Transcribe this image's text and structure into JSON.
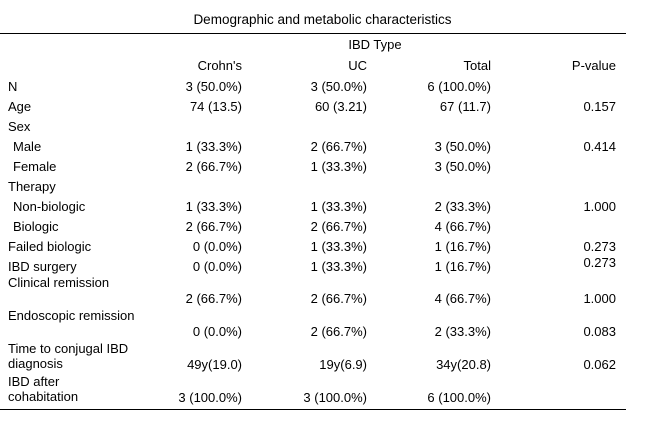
{
  "title": "Demographic and metabolic characteristics",
  "group_header": "IBD Type",
  "columns": [
    "Crohn's",
    "UC",
    "Total",
    "P-value"
  ],
  "rows": [
    {
      "label": "N",
      "crohns": "3 (50.0%)",
      "uc": "3 (50.0%)",
      "total": "6 (100.0%)",
      "p": ""
    },
    {
      "label": "Age",
      "crohns": "74 (13.5)",
      "uc": "60 (3.21)",
      "total": "67 (11.7)",
      "p": "0.157"
    },
    {
      "label": "Sex",
      "crohns": "",
      "uc": "",
      "total": "",
      "p": ""
    },
    {
      "label": "Male",
      "crohns": "1 (33.3%)",
      "uc": "2 (66.7%)",
      "total": "3 (50.0%)",
      "p": "0.414"
    },
    {
      "label": "Female",
      "crohns": "2 (66.7%)",
      "uc": "1 (33.3%)",
      "total": "3 (50.0%)",
      "p": ""
    },
    {
      "label": "Therapy",
      "crohns": "",
      "uc": "",
      "total": "",
      "p": ""
    },
    {
      "label": "Non-biologic",
      "crohns": "1 (33.3%)",
      "uc": "1 (33.3%)",
      "total": "2 (33.3%)",
      "p": "1.000"
    },
    {
      "label": "Biologic",
      "crohns": "2 (66.7%)",
      "uc": "2 (66.7%)",
      "total": "4 (66.7%)",
      "p": ""
    },
    {
      "label": "Failed biologic",
      "crohns": "0 (0.0%)",
      "uc": "1 (33.3%)",
      "total": "1 (16.7%)",
      "p": "0.273"
    },
    {
      "label": "IBD surgery",
      "crohns": "0 (0.0%)",
      "uc": "1 (33.3%)",
      "total": "1 (16.7%)",
      "p": "0.273"
    },
    {
      "label": "Clinical remission",
      "crohns": "2 (66.7%)",
      "uc": "2 (66.7%)",
      "total": "4 (66.7%)",
      "p": "1.000"
    },
    {
      "label": "Endoscopic remission",
      "crohns": "0 (0.0%)",
      "uc": "2 (66.7%)",
      "total": "2 (33.3%)",
      "p": "0.083"
    },
    {
      "label": "Time to conjugal IBD diagnosis",
      "crohns": "49y(19.0)",
      "uc": "19y(6.9)",
      "total": "34y(20.8)",
      "p": "0.062"
    },
    {
      "label": "IBD after cohabitation",
      "crohns": "3 (100.0%)",
      "uc": "3 (100.0%)",
      "total": "6 (100.0%)",
      "p": ""
    }
  ]
}
